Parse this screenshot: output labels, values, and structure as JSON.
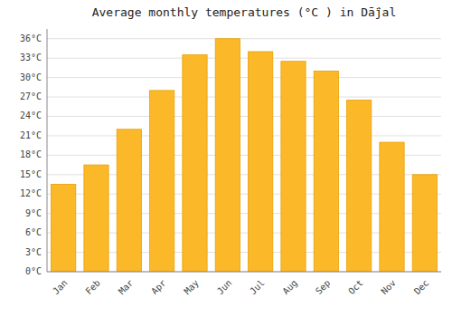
{
  "chart_data": {
    "type": "bar",
    "title": "Average monthly temperatures (°C ) in Dā̈jal",
    "categories": [
      "Jan",
      "Feb",
      "Mar",
      "Apr",
      "May",
      "Jun",
      "Jul",
      "Aug",
      "Sep",
      "Oct",
      "Nov",
      "Dec"
    ],
    "values": [
      13.5,
      16.5,
      22,
      28,
      33.5,
      36,
      34,
      32.5,
      31,
      26.5,
      20,
      15
    ],
    "color": "#FBB829",
    "ylim": [
      0,
      37.5
    ],
    "yticks": [
      {
        "value": 0,
        "label": "0°C"
      },
      {
        "value": 3,
        "label": "3°C"
      },
      {
        "value": 6,
        "label": "6°C"
      },
      {
        "value": 9,
        "label": "9°C"
      },
      {
        "value": 12,
        "label": "12°C"
      },
      {
        "value": 15,
        "label": "15°C"
      },
      {
        "value": 18,
        "label": "18°C"
      },
      {
        "value": 21,
        "label": "21°C"
      },
      {
        "value": 24,
        "label": "24°C"
      },
      {
        "value": 27,
        "label": "27°C"
      },
      {
        "value": 30,
        "label": "30°C"
      },
      {
        "value": 33,
        "label": "33°C"
      },
      {
        "value": 36,
        "label": "36°C"
      }
    ],
    "grid": true
  }
}
